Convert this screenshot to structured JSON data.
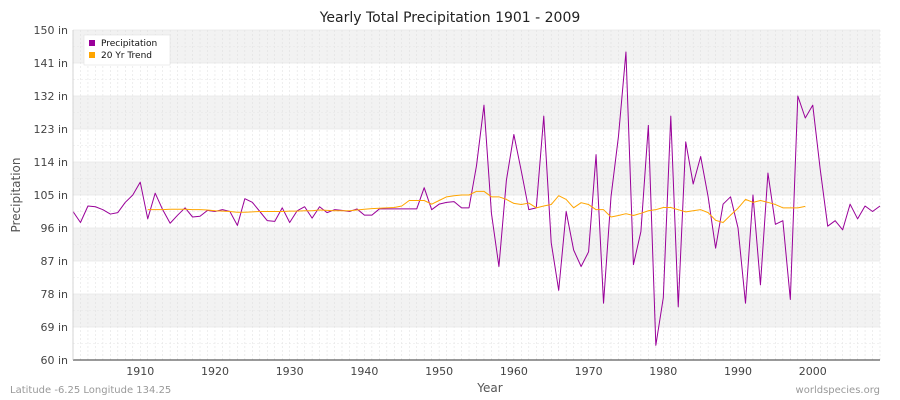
{
  "chart_data": {
    "type": "line",
    "title": "Yearly Total Precipitation 1901 - 2009",
    "xlabel": "Year",
    "ylabel": "Precipitation",
    "xlim": [
      1901,
      2009
    ],
    "ylim": [
      60,
      150
    ],
    "y_ticks": [
      "60 in",
      "69 in",
      "78 in",
      "87 in",
      "96 in",
      "105 in",
      "114 in",
      "123 in",
      "132 in",
      "141 in",
      "150 in"
    ],
    "x_ticks": [
      1910,
      1920,
      1930,
      1940,
      1950,
      1960,
      1970,
      1980,
      1990,
      2000
    ],
    "grid": true,
    "legend_position": "top-left",
    "series": [
      {
        "name": "Precipitation",
        "color": "#990099",
        "start_year": 1901,
        "values": [
          100.5,
          97.5,
          102,
          101.8,
          101,
          99.8,
          100.2,
          103,
          105,
          108.5,
          98.5,
          105.5,
          101,
          97.3,
          99.5,
          101.5,
          99,
          99.2,
          100.8,
          100.5,
          101,
          100.5,
          96.7,
          104,
          103,
          100.5,
          98,
          97.8,
          101.5,
          97.5,
          100.7,
          101.8,
          98.7,
          101.8,
          100.2,
          101,
          100.8,
          100.5,
          101.2,
          99.5,
          99.5,
          101.2,
          101.2,
          101.2,
          101.2,
          101.2,
          101.2,
          107,
          101,
          102.5,
          103,
          103.2,
          101.5,
          101.5,
          113,
          129.5,
          100,
          85.5,
          109,
          121.5,
          111.5,
          101,
          101.5,
          126.5,
          92,
          79,
          100.5,
          90,
          85.5,
          89.5,
          116,
          75.5,
          104.5,
          121,
          144,
          86,
          95,
          124,
          64,
          77,
          126.5,
          74.5,
          119.5,
          108,
          115.5,
          104.5,
          90.5,
          102.5,
          104.5,
          96,
          75.5,
          105,
          80.5,
          111,
          97,
          98,
          76.5,
          132,
          126,
          129.5,
          112,
          96.5,
          98,
          95.5,
          102.5,
          98.5,
          102,
          100.5,
          102
        ]
      },
      {
        "name": "20 Yr Trend",
        "color": "#ffa500",
        "start_year": 1911,
        "values": [
          101,
          101,
          101,
          101.1,
          101.1,
          101.1,
          101,
          101,
          100.9,
          100.7,
          100.6,
          100.5,
          100.3,
          100.3,
          100.4,
          100.5,
          100.5,
          100.5,
          100.5,
          100.6,
          100.6,
          100.7,
          100.7,
          100.9,
          100.8,
          100.7,
          100.7,
          100.7,
          100.9,
          101.1,
          101.3,
          101.4,
          101.5,
          101.6,
          102,
          103.5,
          103.5,
          103.5,
          102.5,
          103.5,
          104.5,
          104.8,
          105,
          105,
          106,
          106,
          104.5,
          104.5,
          103.8,
          102.7,
          102.4,
          102.8,
          101.5,
          102,
          102.4,
          104.8,
          103.8,
          101.5,
          102.9,
          102.4,
          101,
          101,
          99,
          99.4,
          99.9,
          99.4,
          100,
          100.7,
          101,
          101.6,
          101.6,
          101,
          100.4,
          100.7,
          101,
          100.2,
          98.1,
          97.5,
          99.5,
          101.4,
          103.8,
          103,
          103.5,
          103,
          102.4,
          101.5,
          101.5,
          101.5,
          101.9
        ]
      }
    ]
  },
  "footer": {
    "left": "Latitude -6.25 Longitude 134.25",
    "right": "worldspecies.org"
  }
}
